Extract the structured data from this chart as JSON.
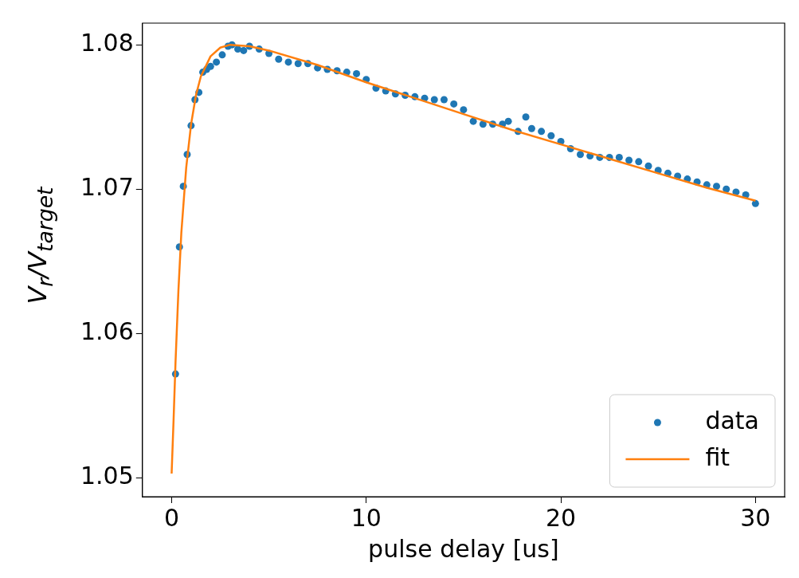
{
  "chart_data": {
    "type": "scatter",
    "xlabel": "pulse delay [us]",
    "ylabel": "V$_{r}$/V$_{target}$",
    "xlim": [
      -1.5,
      31.5
    ],
    "ylim": [
      1.0487,
      1.0815
    ],
    "xticks": [
      0,
      10,
      20,
      30
    ],
    "yticks": [
      1.05,
      1.06,
      1.07,
      1.08
    ],
    "legend": "bottom right",
    "series": [
      {
        "name": "data",
        "marker": "circle",
        "color": "#1f77b4",
        "x": [
          0.2,
          0.4,
          0.6,
          0.8,
          1.0,
          1.2,
          1.4,
          1.6,
          1.8,
          2.0,
          2.3,
          2.6,
          2.9,
          3.1,
          3.4,
          3.7,
          4.0,
          4.5,
          5.0,
          5.5,
          6.0,
          6.5,
          7.0,
          7.5,
          8.0,
          8.5,
          9.0,
          9.5,
          10.0,
          10.5,
          11.0,
          11.5,
          12.0,
          12.5,
          13.0,
          13.5,
          14.0,
          14.5,
          15.0,
          15.5,
          16.0,
          16.5,
          17.0,
          17.3,
          17.8,
          18.2,
          18.5,
          19.0,
          19.5,
          20.0,
          20.5,
          21.0,
          21.5,
          22.0,
          22.5,
          23.0,
          23.5,
          24.0,
          24.5,
          25.0,
          25.5,
          26.0,
          26.5,
          27.0,
          27.5,
          28.0,
          28.5,
          29.0,
          29.5,
          30.0
        ],
        "values": [
          1.0572,
          1.066,
          1.0702,
          1.0724,
          1.0744,
          1.0762,
          1.0767,
          1.0781,
          1.0783,
          1.0785,
          1.0788,
          1.0793,
          1.0799,
          1.08,
          1.0797,
          1.0796,
          1.0799,
          1.0797,
          1.0794,
          1.079,
          1.0788,
          1.0787,
          1.0787,
          1.0784,
          1.0783,
          1.0782,
          1.0781,
          1.078,
          1.0776,
          1.077,
          1.0768,
          1.0766,
          1.0765,
          1.0764,
          1.0763,
          1.0762,
          1.0762,
          1.0759,
          1.0755,
          1.0747,
          1.0745,
          1.0745,
          1.0745,
          1.0747,
          1.074,
          1.075,
          1.0742,
          1.074,
          1.0737,
          1.0733,
          1.0728,
          1.0724,
          1.0723,
          1.0722,
          1.0722,
          1.0722,
          1.072,
          1.0719,
          1.0716,
          1.0713,
          1.0711,
          1.0709,
          1.0707,
          1.0705,
          1.0703,
          1.0702,
          1.07,
          1.0698,
          1.0696,
          1.069
        ]
      },
      {
        "name": "fit",
        "type": "line",
        "color": "#ff7f0e",
        "x": [
          0,
          0.1,
          0.2,
          0.35,
          0.5,
          0.75,
          1.0,
          1.25,
          1.5,
          2.0,
          2.5,
          3.0,
          4.0,
          5.0,
          7.5,
          10,
          12.5,
          15,
          17.5,
          20,
          22.5,
          25,
          27.5,
          30
        ],
        "values": [
          1.0503,
          1.054,
          1.058,
          1.063,
          1.067,
          1.0715,
          1.0745,
          1.0765,
          1.0778,
          1.0792,
          1.0798,
          1.08,
          1.0799,
          1.0796,
          1.0786,
          1.0774,
          1.0763,
          1.0752,
          1.0741,
          1.0731,
          1.0721,
          1.0711,
          1.0701,
          1.0692
        ]
      }
    ]
  }
}
